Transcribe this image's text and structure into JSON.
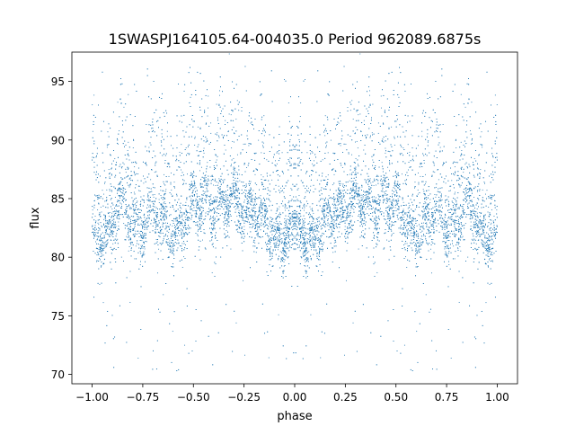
{
  "chart_data": {
    "type": "scatter",
    "title": "1SWASPJ164105.64-004035.0 Period 962089.6875s",
    "xlabel": "phase",
    "ylabel": "flux",
    "xlim": [
      -1.1,
      1.1
    ],
    "ylim": [
      69.2,
      97.5
    ],
    "x_ticks": [
      -1.0,
      -0.75,
      -0.5,
      -0.25,
      0.0,
      0.25,
      0.5,
      0.75,
      1.0
    ],
    "x_tick_labels": [
      "−1.00",
      "−0.75",
      "−0.50",
      "−0.25",
      "0.00",
      "0.25",
      "0.50",
      "0.75",
      "1.00"
    ],
    "y_ticks": [
      70,
      75,
      80,
      85,
      90,
      95
    ],
    "y_tick_labels": [
      "70",
      "75",
      "80",
      "85",
      "90",
      "95"
    ],
    "grid": false,
    "legend": "none",
    "point_color": "#1f77b4",
    "series": [
      {
        "x_range": [
          -1.0,
          1.0
        ],
        "mirrored_about_zero": true,
        "approx_point_count": 12000,
        "baseline_flux": 82,
        "typical_flux_range": [
          79,
          87
        ],
        "outlier_flux_range": [
          70,
          96.5
        ],
        "hump_profile": [
          {
            "phase": 0.0,
            "flux": 81.5
          },
          {
            "phase": 0.06,
            "flux": 82.0
          },
          {
            "phase": 0.12,
            "flux": 82.5
          },
          {
            "phase": 0.2,
            "flux": 83.5
          },
          {
            "phase": 0.25,
            "flux": 84.5
          },
          {
            "phase": 0.3,
            "flux": 85.5
          },
          {
            "phase": 0.36,
            "flux": 83.5
          },
          {
            "phase": 0.44,
            "flux": 85.5
          },
          {
            "phase": 0.5,
            "flux": 84.0
          },
          {
            "phase": 0.56,
            "flux": 82.5
          },
          {
            "phase": 0.62,
            "flux": 83.0
          },
          {
            "phase": 0.7,
            "flux": 83.5
          },
          {
            "phase": 0.78,
            "flux": 82.5
          },
          {
            "phase": 0.85,
            "flux": 84.0
          },
          {
            "phase": 0.92,
            "flux": 82.5
          },
          {
            "phase": 1.0,
            "flux": 82.0
          }
        ]
      }
    ]
  }
}
